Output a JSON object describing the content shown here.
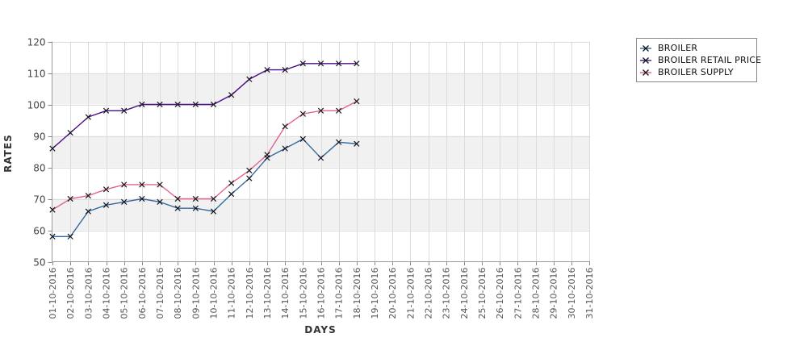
{
  "chart_data": {
    "type": "line",
    "title": "",
    "xlabel": "DAYS",
    "ylabel": "RATES",
    "ylim": [
      50,
      120
    ],
    "y_ticks": [
      50,
      60,
      70,
      80,
      90,
      100,
      110,
      120
    ],
    "grid": true,
    "banded_background": true,
    "legend_position": "top-right-outside",
    "marker": "x",
    "categories": [
      "01-10-2016",
      "02-10-2016",
      "03-10-2016",
      "04-10-2016",
      "05-10-2016",
      "06-10-2016",
      "07-10-2016",
      "08-10-2016",
      "09-10-2016",
      "10-10-2016",
      "11-10-2016",
      "12-10-2016",
      "13-10-2016",
      "14-10-2016",
      "15-10-2016",
      "16-10-2016",
      "17-10-2016",
      "18-10-2016",
      "19-10-2016",
      "20-10-2016",
      "21-10-2016",
      "22-10-2016",
      "23-10-2016",
      "24-10-2016",
      "25-10-2016",
      "26-10-2016",
      "27-10-2016",
      "28-10-2016",
      "29-10-2016",
      "30-10-2016",
      "31-10-2016"
    ],
    "series": [
      {
        "name": "BROILER",
        "color": "#336a9e",
        "values": [
          58,
          58,
          66,
          68,
          69,
          70,
          69,
          67,
          67,
          66,
          71.5,
          76.5,
          83,
          86,
          89,
          83,
          88,
          87.5
        ]
      },
      {
        "name": "BROILER RETAIL PRICE",
        "color": "#4a0d87",
        "values": [
          86,
          91,
          96,
          98,
          98,
          100,
          100,
          100,
          100,
          100,
          103,
          108,
          111,
          111,
          113,
          113,
          113,
          113
        ]
      },
      {
        "name": "BROILER SUPPLY",
        "color": "#e2638e",
        "values": [
          66.5,
          70,
          71,
          73,
          74.5,
          74.5,
          74.5,
          70,
          70,
          70,
          75,
          79,
          84,
          93,
          97,
          98,
          98,
          101
        ]
      }
    ],
    "colors": {
      "band": "#f1f1f1",
      "grid": "#dcdcdc",
      "axis": "#999999",
      "tick": "#888888",
      "y_tick_label": "#444444",
      "x_tick_label": "#555555",
      "marker_stroke": "#15151f"
    }
  }
}
